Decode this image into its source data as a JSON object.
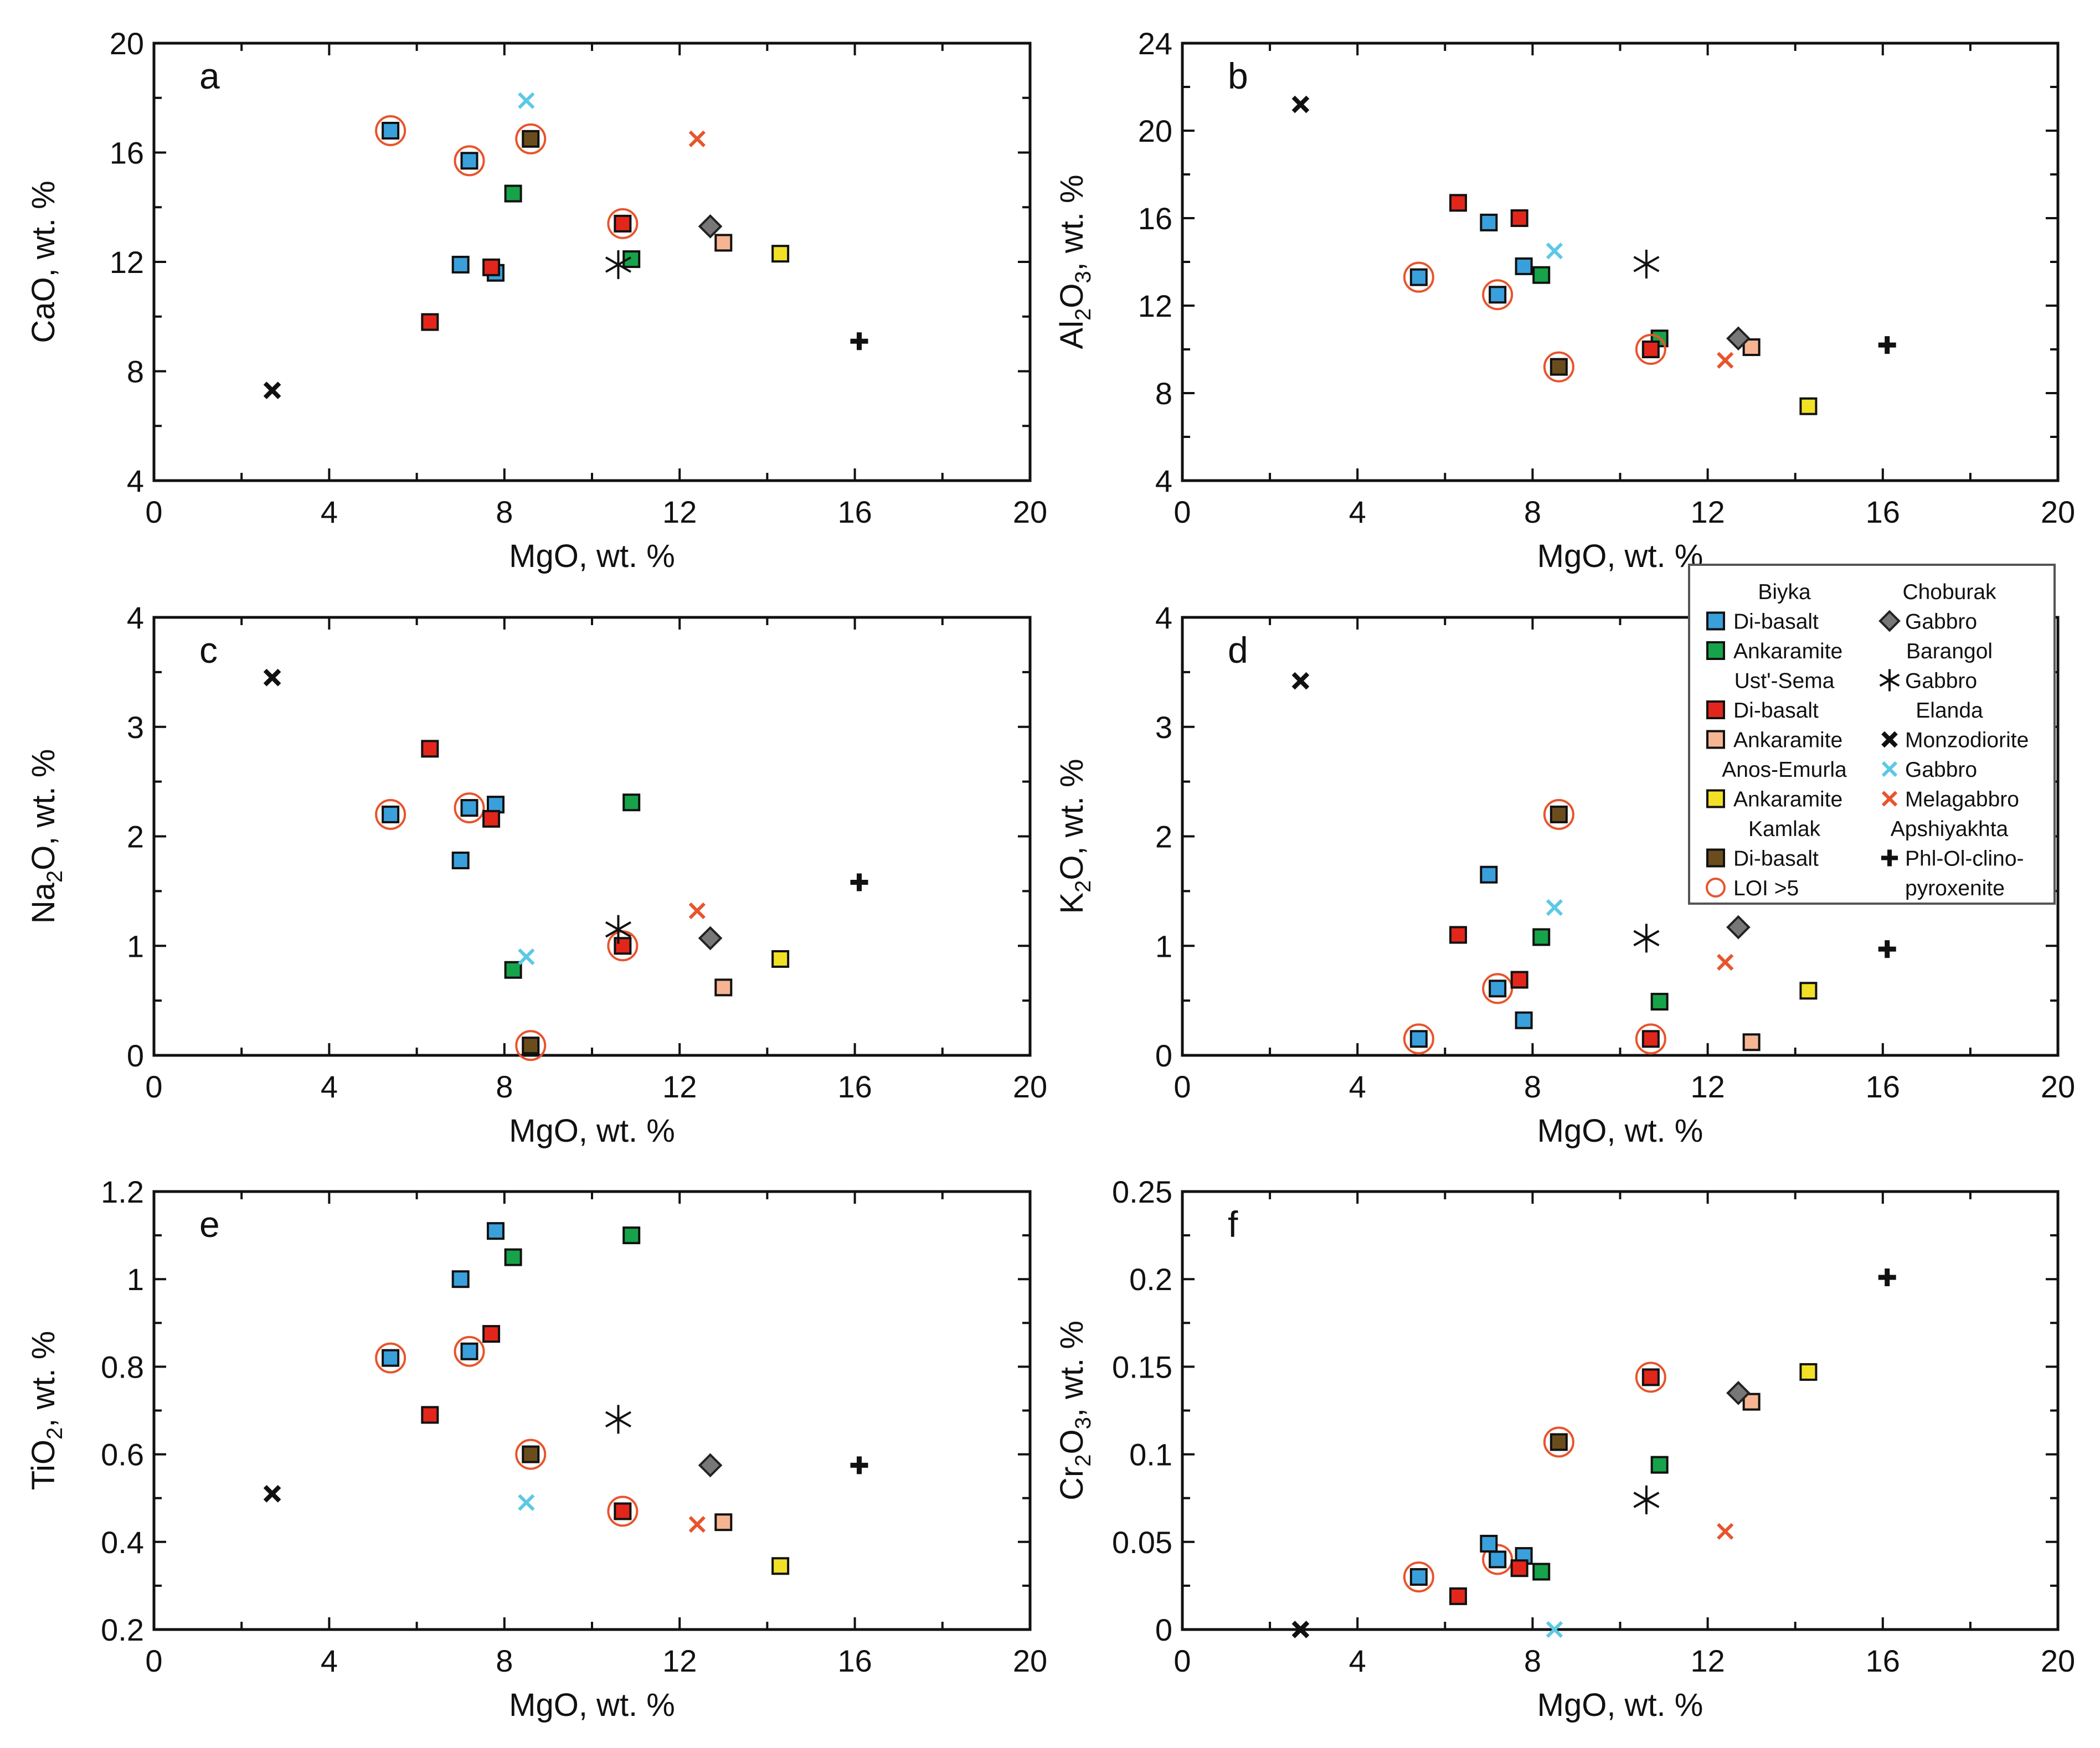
{
  "figure": {
    "legend": {
      "left": [
        {
          "kind": "header",
          "text": "Biyka"
        },
        {
          "kind": "item",
          "text": "Di-basalt",
          "marker": "square",
          "color": "#3aa0dc"
        },
        {
          "kind": "item",
          "text": "Ankaramite",
          "marker": "square",
          "color": "#17a34a"
        },
        {
          "kind": "header",
          "text": "Ust'-Sema"
        },
        {
          "kind": "item",
          "text": "Di-basalt",
          "marker": "square",
          "color": "#e3261b"
        },
        {
          "kind": "item",
          "text": "Ankaramite",
          "marker": "square",
          "color": "#f6b592"
        },
        {
          "kind": "header",
          "text": "Anos-Emurla"
        },
        {
          "kind": "item",
          "text": "Ankaramite",
          "marker": "square",
          "color": "#f2e027"
        },
        {
          "kind": "header",
          "text": "Kamlak"
        },
        {
          "kind": "item",
          "text": "Di-basalt",
          "marker": "square",
          "color": "#6b4d1d"
        },
        {
          "kind": "item",
          "text": "LOI >5",
          "marker": "circle",
          "color": "#e8542c"
        }
      ],
      "right": [
        {
          "kind": "header",
          "text": "Choburak"
        },
        {
          "kind": "item",
          "text": "Gabbro",
          "marker": "diamond",
          "color": "#777777"
        },
        {
          "kind": "header",
          "text": "Barangol"
        },
        {
          "kind": "item",
          "text": "Gabbro",
          "marker": "asterisk",
          "color": "#111111"
        },
        {
          "kind": "header",
          "text": "Elanda"
        },
        {
          "kind": "item",
          "text": "Monzodiorite",
          "marker": "x-black",
          "color": "#111111"
        },
        {
          "kind": "item",
          "text": "Gabbro",
          "marker": "x-cyan",
          "color": "#5cc8e6"
        },
        {
          "kind": "item",
          "text": "Melagabbro",
          "marker": "x-red",
          "color": "#e8542c"
        },
        {
          "kind": "header",
          "text": "Apshiyakhta"
        },
        {
          "kind": "item",
          "text": "Phl-Ol-clino-",
          "marker": "plus",
          "color": "#111111"
        },
        {
          "kind": "item",
          "text": "pyroxenite",
          "marker": "none",
          "color": "#111111"
        }
      ]
    }
  },
  "chart_data": [
    {
      "type": "scatter",
      "panel": "a",
      "xlabel": "MgO, wt. %",
      "ylabel_parts": [
        {
          "t": "CaO, wt. %"
        }
      ],
      "xlim": [
        0,
        20
      ],
      "ylim": [
        4,
        20
      ],
      "xticks": [
        0,
        4,
        8,
        12,
        16,
        20
      ],
      "yticks": [
        4,
        8,
        12,
        16,
        20
      ],
      "points": [
        {
          "x": 5.4,
          "y": 16.8,
          "m": "sq",
          "c": "#3aa0dc",
          "loi": true
        },
        {
          "x": 7.2,
          "y": 15.7,
          "m": "sq",
          "c": "#3aa0dc",
          "loi": true
        },
        {
          "x": 7.0,
          "y": 11.9,
          "m": "sq",
          "c": "#3aa0dc"
        },
        {
          "x": 7.8,
          "y": 11.6,
          "m": "sq",
          "c": "#3aa0dc"
        },
        {
          "x": 8.2,
          "y": 14.5,
          "m": "sq",
          "c": "#17a34a"
        },
        {
          "x": 10.9,
          "y": 12.1,
          "m": "sq",
          "c": "#17a34a"
        },
        {
          "x": 6.3,
          "y": 9.8,
          "m": "sq",
          "c": "#e3261b"
        },
        {
          "x": 7.7,
          "y": 11.8,
          "m": "sq",
          "c": "#e3261b"
        },
        {
          "x": 10.7,
          "y": 13.4,
          "m": "sq",
          "c": "#e3261b",
          "loi": true
        },
        {
          "x": 13.0,
          "y": 12.7,
          "m": "sq",
          "c": "#f6b592"
        },
        {
          "x": 14.3,
          "y": 12.3,
          "m": "sq",
          "c": "#f2e027"
        },
        {
          "x": 8.6,
          "y": 16.5,
          "m": "sq",
          "c": "#6b4d1d",
          "loi": true
        },
        {
          "x": 12.7,
          "y": 13.3,
          "m": "dia",
          "c": "#777777"
        },
        {
          "x": 10.6,
          "y": 11.9,
          "m": "ast",
          "c": "#111111"
        },
        {
          "x": 2.7,
          "y": 7.3,
          "m": "xb",
          "c": "#111111"
        },
        {
          "x": 8.5,
          "y": 17.9,
          "m": "xc",
          "c": "#5cc8e6"
        },
        {
          "x": 12.4,
          "y": 16.5,
          "m": "xr",
          "c": "#e8542c"
        },
        {
          "x": 16.1,
          "y": 9.1,
          "m": "plus",
          "c": "#111111"
        }
      ]
    },
    {
      "type": "scatter",
      "panel": "b",
      "xlabel": "MgO, wt. %",
      "ylabel_parts": [
        {
          "t": "Al"
        },
        {
          "t": "2",
          "sub": true
        },
        {
          "t": "O"
        },
        {
          "t": "3",
          "sub": true
        },
        {
          "t": ", wt. %"
        }
      ],
      "xlim": [
        0,
        20
      ],
      "ylim": [
        4,
        24
      ],
      "xticks": [
        0,
        4,
        8,
        12,
        16,
        20
      ],
      "yticks": [
        4,
        8,
        12,
        16,
        20,
        24
      ],
      "points": [
        {
          "x": 5.4,
          "y": 13.3,
          "m": "sq",
          "c": "#3aa0dc",
          "loi": true
        },
        {
          "x": 7.2,
          "y": 12.5,
          "m": "sq",
          "c": "#3aa0dc",
          "loi": true
        },
        {
          "x": 7.0,
          "y": 15.8,
          "m": "sq",
          "c": "#3aa0dc"
        },
        {
          "x": 7.8,
          "y": 13.8,
          "m": "sq",
          "c": "#3aa0dc"
        },
        {
          "x": 8.2,
          "y": 13.4,
          "m": "sq",
          "c": "#17a34a"
        },
        {
          "x": 10.9,
          "y": 10.5,
          "m": "sq",
          "c": "#17a34a"
        },
        {
          "x": 6.3,
          "y": 16.7,
          "m": "sq",
          "c": "#e3261b"
        },
        {
          "x": 7.7,
          "y": 16.0,
          "m": "sq",
          "c": "#e3261b"
        },
        {
          "x": 10.7,
          "y": 10.0,
          "m": "sq",
          "c": "#e3261b",
          "loi": true
        },
        {
          "x": 13.0,
          "y": 10.1,
          "m": "sq",
          "c": "#f6b592"
        },
        {
          "x": 14.3,
          "y": 7.4,
          "m": "sq",
          "c": "#f2e027"
        },
        {
          "x": 8.6,
          "y": 9.2,
          "m": "sq",
          "c": "#6b4d1d",
          "loi": true
        },
        {
          "x": 12.7,
          "y": 10.5,
          "m": "dia",
          "c": "#777777"
        },
        {
          "x": 10.6,
          "y": 13.9,
          "m": "ast",
          "c": "#111111"
        },
        {
          "x": 2.7,
          "y": 21.2,
          "m": "xb",
          "c": "#111111"
        },
        {
          "x": 8.5,
          "y": 14.5,
          "m": "xc",
          "c": "#5cc8e6"
        },
        {
          "x": 12.4,
          "y": 9.5,
          "m": "xr",
          "c": "#e8542c"
        },
        {
          "x": 16.1,
          "y": 10.2,
          "m": "plus",
          "c": "#111111"
        }
      ]
    },
    {
      "type": "scatter",
      "panel": "c",
      "xlabel": "MgO, wt. %",
      "ylabel_parts": [
        {
          "t": "Na"
        },
        {
          "t": "2",
          "sub": true
        },
        {
          "t": "O, wt. %"
        }
      ],
      "xlim": [
        0,
        20
      ],
      "ylim": [
        0,
        4
      ],
      "xticks": [
        0,
        4,
        8,
        12,
        16,
        20
      ],
      "yticks": [
        0,
        1,
        2,
        3,
        4
      ],
      "points": [
        {
          "x": 5.4,
          "y": 2.2,
          "m": "sq",
          "c": "#3aa0dc",
          "loi": true
        },
        {
          "x": 7.2,
          "y": 2.26,
          "m": "sq",
          "c": "#3aa0dc",
          "loi": true
        },
        {
          "x": 7.0,
          "y": 1.78,
          "m": "sq",
          "c": "#3aa0dc"
        },
        {
          "x": 7.8,
          "y": 2.29,
          "m": "sq",
          "c": "#3aa0dc"
        },
        {
          "x": 8.2,
          "y": 0.78,
          "m": "sq",
          "c": "#17a34a"
        },
        {
          "x": 10.9,
          "y": 2.31,
          "m": "sq",
          "c": "#17a34a"
        },
        {
          "x": 6.3,
          "y": 2.8,
          "m": "sq",
          "c": "#e3261b"
        },
        {
          "x": 7.7,
          "y": 2.16,
          "m": "sq",
          "c": "#e3261b"
        },
        {
          "x": 10.7,
          "y": 1.0,
          "m": "sq",
          "c": "#e3261b",
          "loi": true
        },
        {
          "x": 13.0,
          "y": 0.62,
          "m": "sq",
          "c": "#f6b592"
        },
        {
          "x": 14.3,
          "y": 0.88,
          "m": "sq",
          "c": "#f2e027"
        },
        {
          "x": 8.6,
          "y": 0.09,
          "m": "sq",
          "c": "#6b4d1d",
          "loi": true
        },
        {
          "x": 12.7,
          "y": 1.07,
          "m": "dia",
          "c": "#777777"
        },
        {
          "x": 10.6,
          "y": 1.15,
          "m": "ast",
          "c": "#111111"
        },
        {
          "x": 2.7,
          "y": 3.45,
          "m": "xb",
          "c": "#111111"
        },
        {
          "x": 8.5,
          "y": 0.9,
          "m": "xc",
          "c": "#5cc8e6"
        },
        {
          "x": 12.4,
          "y": 1.32,
          "m": "xr",
          "c": "#e8542c"
        },
        {
          "x": 16.1,
          "y": 1.58,
          "m": "plus",
          "c": "#111111"
        }
      ]
    },
    {
      "type": "scatter",
      "panel": "d",
      "xlabel": "MgO, wt. %",
      "ylabel_parts": [
        {
          "t": "K"
        },
        {
          "t": "2",
          "sub": true
        },
        {
          "t": "O, wt. %"
        }
      ],
      "xlim": [
        0,
        20
      ],
      "ylim": [
        0,
        4
      ],
      "xticks": [
        0,
        4,
        8,
        12,
        16,
        20
      ],
      "yticks": [
        0,
        1,
        2,
        3,
        4
      ],
      "points": [
        {
          "x": 5.4,
          "y": 0.15,
          "m": "sq",
          "c": "#3aa0dc",
          "loi": true
        },
        {
          "x": 7.2,
          "y": 0.61,
          "m": "sq",
          "c": "#3aa0dc",
          "loi": true
        },
        {
          "x": 7.0,
          "y": 1.65,
          "m": "sq",
          "c": "#3aa0dc"
        },
        {
          "x": 7.8,
          "y": 0.32,
          "m": "sq",
          "c": "#3aa0dc"
        },
        {
          "x": 8.2,
          "y": 1.08,
          "m": "sq",
          "c": "#17a34a"
        },
        {
          "x": 10.9,
          "y": 0.49,
          "m": "sq",
          "c": "#17a34a"
        },
        {
          "x": 6.3,
          "y": 1.1,
          "m": "sq",
          "c": "#e3261b"
        },
        {
          "x": 7.7,
          "y": 0.69,
          "m": "sq",
          "c": "#e3261b"
        },
        {
          "x": 10.7,
          "y": 0.15,
          "m": "sq",
          "c": "#e3261b",
          "loi": true
        },
        {
          "x": 13.0,
          "y": 0.12,
          "m": "sq",
          "c": "#f6b592"
        },
        {
          "x": 14.3,
          "y": 0.59,
          "m": "sq",
          "c": "#f2e027"
        },
        {
          "x": 8.6,
          "y": 2.2,
          "m": "sq",
          "c": "#6b4d1d",
          "loi": true
        },
        {
          "x": 12.7,
          "y": 1.17,
          "m": "dia",
          "c": "#777777"
        },
        {
          "x": 10.6,
          "y": 1.07,
          "m": "ast",
          "c": "#111111"
        },
        {
          "x": 2.7,
          "y": 3.42,
          "m": "xb",
          "c": "#111111"
        },
        {
          "x": 8.5,
          "y": 1.35,
          "m": "xc",
          "c": "#5cc8e6"
        },
        {
          "x": 12.4,
          "y": 0.85,
          "m": "xr",
          "c": "#e8542c"
        },
        {
          "x": 16.1,
          "y": 0.97,
          "m": "plus",
          "c": "#111111"
        }
      ]
    },
    {
      "type": "scatter",
      "panel": "e",
      "xlabel": "MgO, wt. %",
      "ylabel_parts": [
        {
          "t": "TiO"
        },
        {
          "t": "2",
          "sub": true
        },
        {
          "t": ", wt. %"
        }
      ],
      "xlim": [
        0,
        20
      ],
      "ylim": [
        0.2,
        1.2
      ],
      "xticks": [
        0,
        4,
        8,
        12,
        16,
        20
      ],
      "yticks": [
        0.2,
        0.4,
        0.6,
        0.8,
        1,
        1.2
      ],
      "ytick_labels": [
        "0.2",
        "0.4",
        "0.6",
        "0.8",
        "1",
        "1.2"
      ],
      "points": [
        {
          "x": 5.4,
          "y": 0.82,
          "m": "sq",
          "c": "#3aa0dc",
          "loi": true
        },
        {
          "x": 7.2,
          "y": 0.835,
          "m": "sq",
          "c": "#3aa0dc",
          "loi": true
        },
        {
          "x": 7.0,
          "y": 1.0,
          "m": "sq",
          "c": "#3aa0dc"
        },
        {
          "x": 7.8,
          "y": 1.11,
          "m": "sq",
          "c": "#3aa0dc"
        },
        {
          "x": 8.2,
          "y": 1.05,
          "m": "sq",
          "c": "#17a34a"
        },
        {
          "x": 10.9,
          "y": 1.1,
          "m": "sq",
          "c": "#17a34a"
        },
        {
          "x": 6.3,
          "y": 0.69,
          "m": "sq",
          "c": "#e3261b"
        },
        {
          "x": 7.7,
          "y": 0.875,
          "m": "sq",
          "c": "#e3261b"
        },
        {
          "x": 10.7,
          "y": 0.47,
          "m": "sq",
          "c": "#e3261b",
          "loi": true
        },
        {
          "x": 13.0,
          "y": 0.445,
          "m": "sq",
          "c": "#f6b592"
        },
        {
          "x": 14.3,
          "y": 0.345,
          "m": "sq",
          "c": "#f2e027"
        },
        {
          "x": 8.6,
          "y": 0.6,
          "m": "sq",
          "c": "#6b4d1d",
          "loi": true
        },
        {
          "x": 12.7,
          "y": 0.575,
          "m": "dia",
          "c": "#777777"
        },
        {
          "x": 10.6,
          "y": 0.68,
          "m": "ast",
          "c": "#111111"
        },
        {
          "x": 2.7,
          "y": 0.51,
          "m": "xb",
          "c": "#111111"
        },
        {
          "x": 8.5,
          "y": 0.49,
          "m": "xc",
          "c": "#5cc8e6"
        },
        {
          "x": 12.4,
          "y": 0.44,
          "m": "xr",
          "c": "#e8542c"
        },
        {
          "x": 16.1,
          "y": 0.575,
          "m": "plus",
          "c": "#111111"
        }
      ]
    },
    {
      "type": "scatter",
      "panel": "f",
      "xlabel": "MgO, wt. %",
      "ylabel_parts": [
        {
          "t": "Cr"
        },
        {
          "t": "2",
          "sub": true
        },
        {
          "t": "O"
        },
        {
          "t": "3",
          "sub": true
        },
        {
          "t": ", wt. %"
        }
      ],
      "xlim": [
        0,
        20
      ],
      "ylim": [
        0,
        0.25
      ],
      "xticks": [
        0,
        4,
        8,
        12,
        16,
        20
      ],
      "yticks": [
        0,
        0.05,
        0.1,
        0.15,
        0.2,
        0.25
      ],
      "ytick_labels": [
        "0",
        "0.05",
        "0.1",
        "0.15",
        "0.2",
        "0.25"
      ],
      "points": [
        {
          "x": 5.4,
          "y": 0.03,
          "m": "sq",
          "c": "#3aa0dc",
          "loi": true
        },
        {
          "x": 7.2,
          "y": 0.04,
          "m": "sq",
          "c": "#3aa0dc",
          "loi": true
        },
        {
          "x": 7.0,
          "y": 0.049,
          "m": "sq",
          "c": "#3aa0dc"
        },
        {
          "x": 7.8,
          "y": 0.042,
          "m": "sq",
          "c": "#3aa0dc"
        },
        {
          "x": 8.2,
          "y": 0.033,
          "m": "sq",
          "c": "#17a34a"
        },
        {
          "x": 10.9,
          "y": 0.094,
          "m": "sq",
          "c": "#17a34a"
        },
        {
          "x": 6.3,
          "y": 0.019,
          "m": "sq",
          "c": "#e3261b"
        },
        {
          "x": 7.7,
          "y": 0.035,
          "m": "sq",
          "c": "#e3261b"
        },
        {
          "x": 10.7,
          "y": 0.144,
          "m": "sq",
          "c": "#e3261b",
          "loi": true
        },
        {
          "x": 13.0,
          "y": 0.13,
          "m": "sq",
          "c": "#f6b592"
        },
        {
          "x": 14.3,
          "y": 0.147,
          "m": "sq",
          "c": "#f2e027"
        },
        {
          "x": 8.6,
          "y": 0.107,
          "m": "sq",
          "c": "#6b4d1d",
          "loi": true
        },
        {
          "x": 12.7,
          "y": 0.135,
          "m": "dia",
          "c": "#777777"
        },
        {
          "x": 10.6,
          "y": 0.074,
          "m": "ast",
          "c": "#111111"
        },
        {
          "x": 2.7,
          "y": 0.0,
          "m": "xb",
          "c": "#111111"
        },
        {
          "x": 8.5,
          "y": 0.0,
          "m": "xc",
          "c": "#5cc8e6"
        },
        {
          "x": 12.4,
          "y": 0.056,
          "m": "xr",
          "c": "#e8542c"
        },
        {
          "x": 16.1,
          "y": 0.201,
          "m": "plus",
          "c": "#111111"
        }
      ]
    }
  ]
}
